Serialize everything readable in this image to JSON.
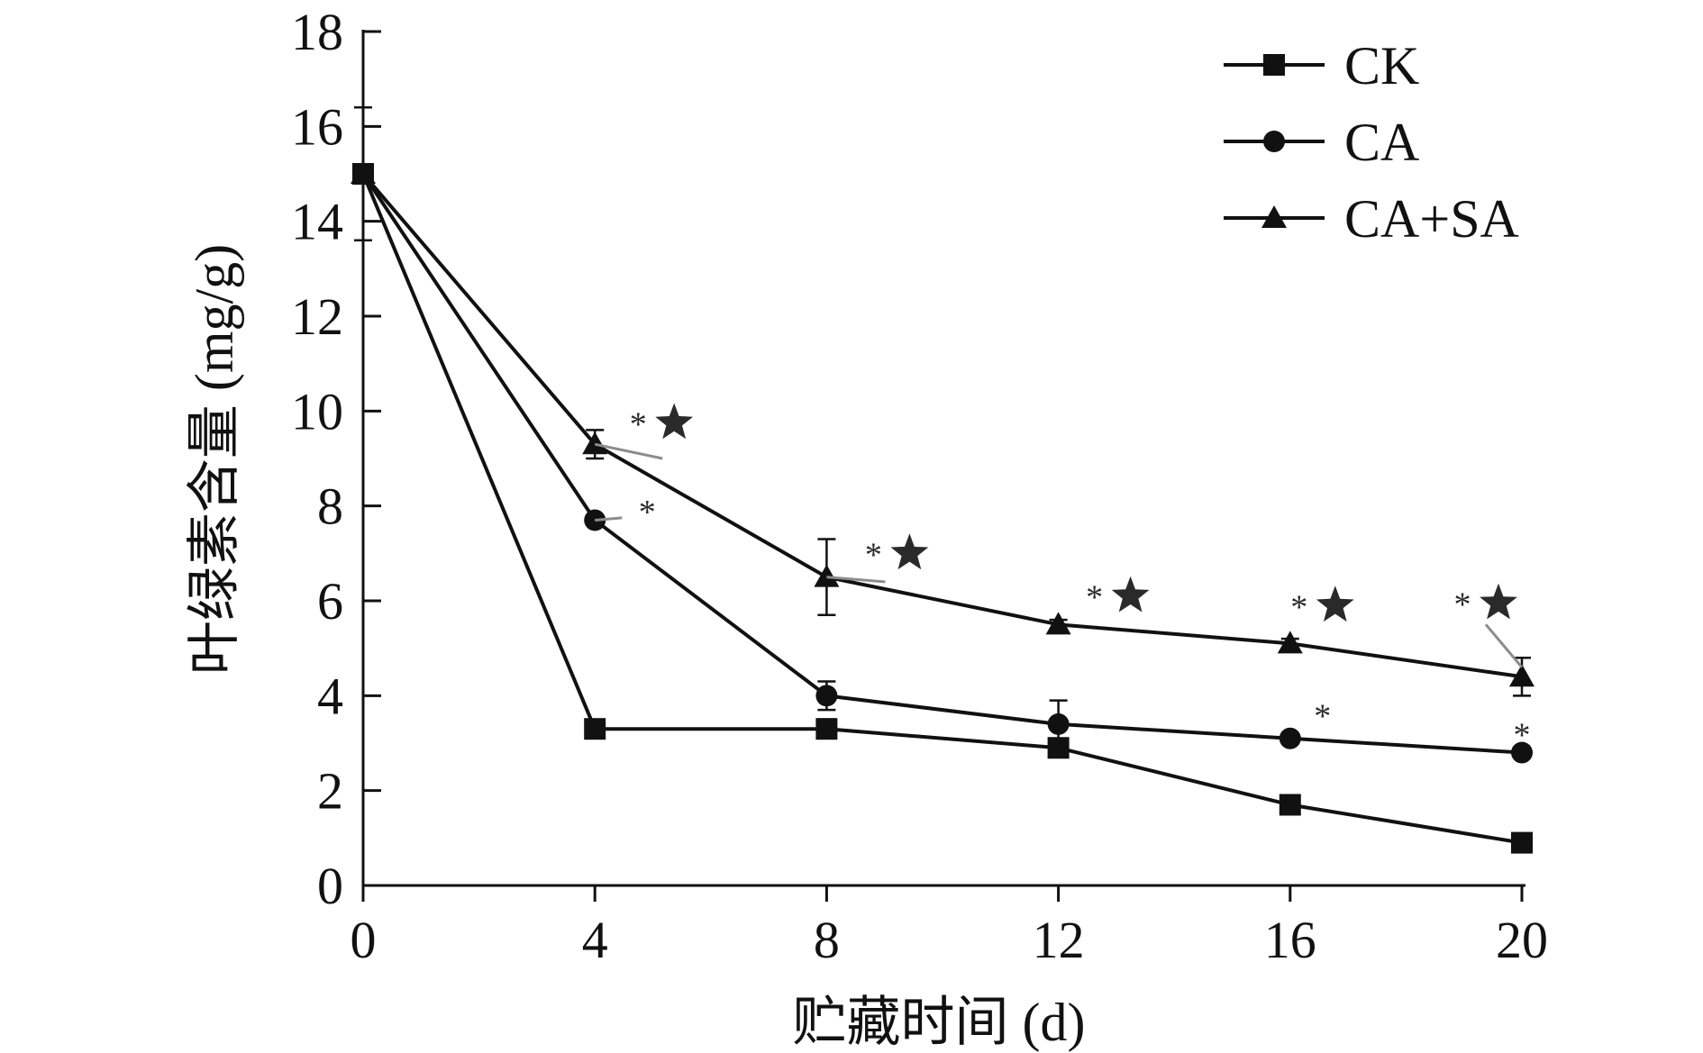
{
  "chart_data": {
    "type": "line",
    "xlabel": "贮藏时间 (d)",
    "ylabel": "叶绿素含量 (mg/g)",
    "x": [
      0,
      4,
      8,
      12,
      16,
      20
    ],
    "xlim": [
      0,
      20
    ],
    "ylim": [
      0,
      18
    ],
    "x_ticks": [
      "0",
      "4",
      "8",
      "12",
      "16",
      "20"
    ],
    "y_ticks": [
      "0",
      "2",
      "4",
      "6",
      "8",
      "10",
      "12",
      "14",
      "16",
      "18"
    ],
    "grid": false,
    "legend_position": "top-right",
    "series": [
      {
        "name": "CK",
        "marker": "square",
        "values": [
          15.0,
          3.3,
          3.3,
          2.9,
          1.7,
          0.9
        ],
        "error": [
          1.4,
          0.1,
          0.2,
          0.2,
          0.2,
          0.1
        ]
      },
      {
        "name": "CA",
        "marker": "circle",
        "values": [
          15.0,
          7.7,
          4.0,
          3.4,
          3.1,
          2.8
        ],
        "error": [
          1.4,
          0.1,
          0.3,
          0.5,
          0.1,
          0.1
        ]
      },
      {
        "name": "CA+SA",
        "marker": "triangle",
        "values": [
          15.0,
          9.3,
          6.5,
          5.5,
          5.1,
          4.4
        ],
        "error": [
          1.4,
          0.3,
          0.8,
          0.1,
          0.1,
          0.4
        ]
      }
    ],
    "annotations": [
      {
        "x": 4,
        "text": "*",
        "star": true,
        "y_text": 9.75
      },
      {
        "x": 4,
        "text": "*",
        "star": false,
        "y_text": 7.9
      },
      {
        "x": 8,
        "text": "*",
        "star": true,
        "y_text": 7.0
      },
      {
        "x": 12,
        "text": "*",
        "star": true,
        "y_text": 6.1
      },
      {
        "x": 16,
        "text": "*",
        "star": true,
        "y_text": 5.9
      },
      {
        "x": 16,
        "text": "*",
        "star": false,
        "y_text": 3.6
      },
      {
        "x": 20,
        "text": "*",
        "star": true,
        "y_text": 5.95
      },
      {
        "x": 20,
        "text": "*",
        "star": false,
        "y_text": 3.2
      }
    ],
    "colors": {
      "line": "#111111",
      "annotation": "#2a2a2a",
      "leader": "#8c8c8c"
    }
  }
}
